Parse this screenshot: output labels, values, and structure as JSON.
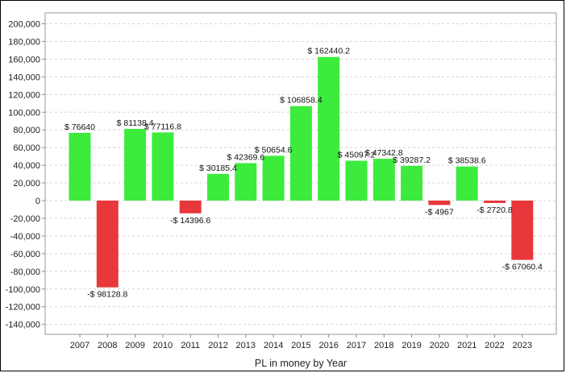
{
  "chart_data": {
    "type": "bar",
    "xlabel": "PL in money by Year",
    "ylabel": "",
    "ylim": [
      -150000,
      210000
    ],
    "yticks": [
      200000,
      180000,
      160000,
      140000,
      120000,
      100000,
      80000,
      60000,
      40000,
      20000,
      0,
      -20000,
      -40000,
      -60000,
      -80000,
      -100000,
      -120000,
      -140000
    ],
    "ytick_labels": [
      "200,000",
      "180,000",
      "160,000",
      "140,000",
      "120,000",
      "100,000",
      "80,000",
      "60,000",
      "40,000",
      "20,000",
      "0",
      "-20,000",
      "-40,000",
      "-60,000",
      "-80,000",
      "-100,000",
      "-120,000",
      "-140,000"
    ],
    "grid": true,
    "categories": [
      "2007",
      "2008",
      "2009",
      "2010",
      "2011",
      "2012",
      "2013",
      "2014",
      "2015",
      "2016",
      "2017",
      "2018",
      "2019",
      "2020",
      "2021",
      "2022",
      "2023"
    ],
    "values": [
      76640,
      -98128.8,
      81138.4,
      77116.8,
      -14396.6,
      30185.4,
      42369.6,
      50654.6,
      106858.4,
      162440.2,
      45097.2,
      47342.8,
      39287.2,
      -4967,
      38538.6,
      -2720.8,
      -67060.4
    ],
    "data_labels": [
      "$ 76640",
      "-$ 98128.8",
      "$ 81138.4",
      "$ 77116.8",
      "-$ 14396.6",
      "$ 30185.4",
      "$ 42369.6",
      "$ 50654.6",
      "$ 106858.4",
      "$ 162440.2",
      "$ 45097.2",
      "$ 47342.8",
      "$ 39287.2",
      "-$ 4967",
      "$ 38538.6",
      "-$ 2720.8",
      "-$ 67060.4"
    ],
    "colors": {
      "positive": "#3deb3d",
      "negative": "#e8383b",
      "grid": "#d4d4d4",
      "axis": "#888888"
    }
  }
}
